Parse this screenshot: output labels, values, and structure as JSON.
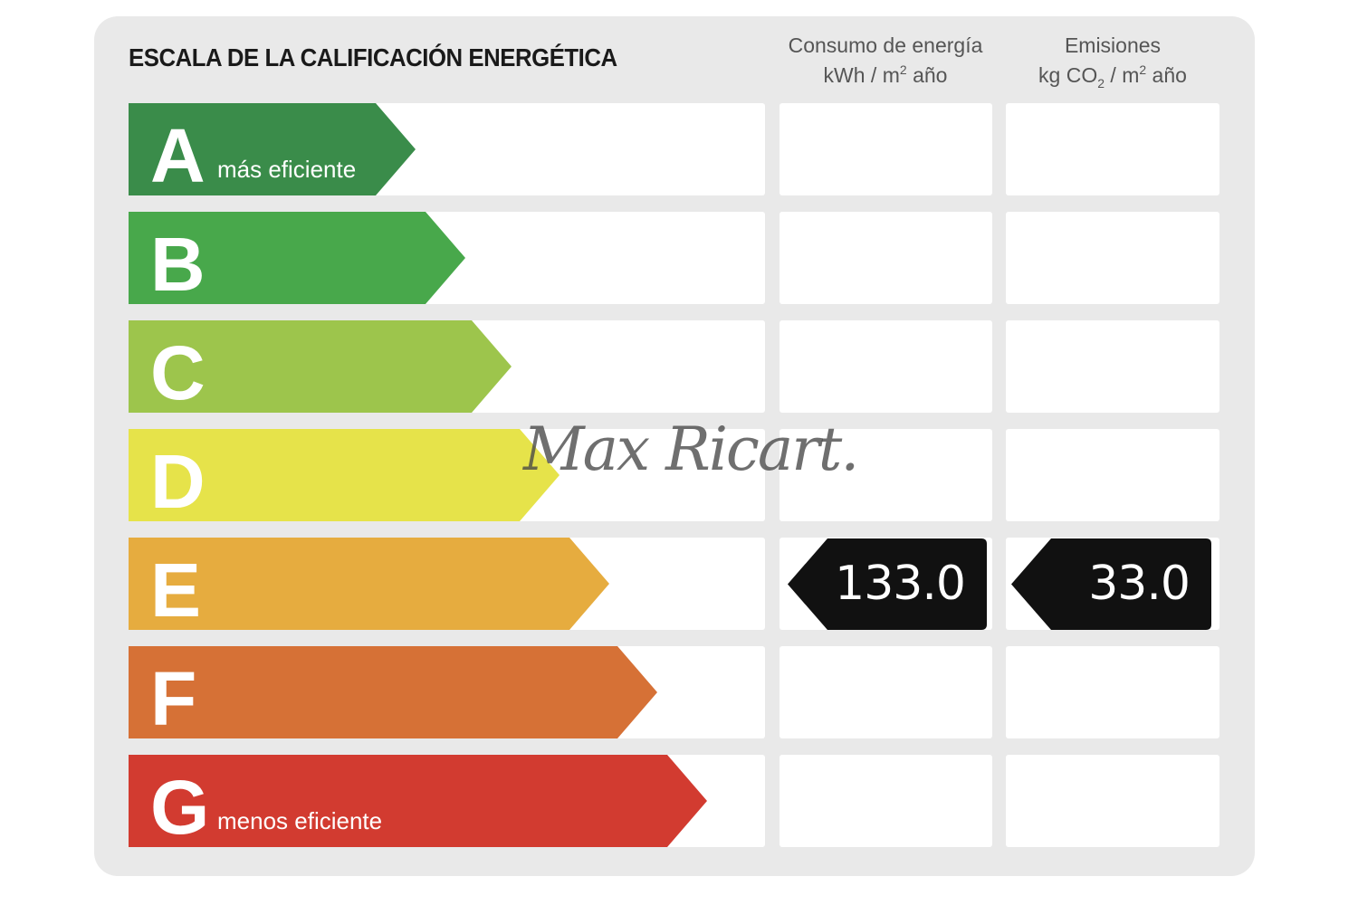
{
  "title": "ESCALA DE LA CALIFICACIÓN ENERGÉTICA",
  "columns": {
    "energy": {
      "line1": "Consumo de energía",
      "line2_a": "kWh / m",
      "line2_sup": "2",
      "line2_b": " año"
    },
    "emissions": {
      "line1": "Emisiones",
      "line2_a": "kg CO",
      "line2_sub": "2",
      "line2_b": " / m",
      "line2_sup": "2",
      "line2_c": " año"
    }
  },
  "scale": [
    {
      "letter": "A",
      "sublabel": "más eficiente",
      "color": "#3a8c4a"
    },
    {
      "letter": "B",
      "sublabel": "",
      "color": "#48a84b"
    },
    {
      "letter": "C",
      "sublabel": "",
      "color": "#9dc54c"
    },
    {
      "letter": "D",
      "sublabel": "",
      "color": "#e6e34a"
    },
    {
      "letter": "E",
      "sublabel": "",
      "color": "#e6ac3f"
    },
    {
      "letter": "F",
      "sublabel": "",
      "color": "#d67136"
    },
    {
      "letter": "G",
      "sublabel": "menos eficiente",
      "color": "#d23b30"
    }
  ],
  "rating": {
    "class": "E",
    "energy_value": "133.0",
    "emissions_value": "33.0",
    "color": "#111111"
  },
  "watermark": "Max Ricart."
}
